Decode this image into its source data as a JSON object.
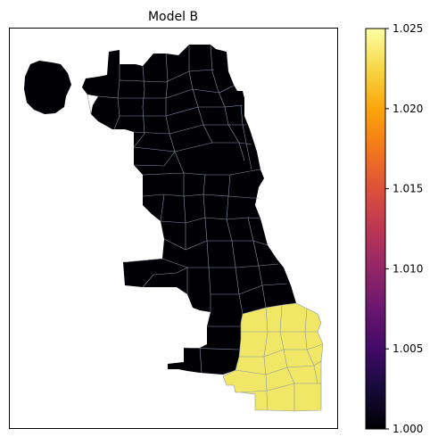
{
  "figure": {
    "title": "Model B"
  },
  "map": {
    "region_count": 77,
    "low_color": "#000004",
    "high_color": "#fcffa4",
    "boundary_color": "#8a94a8",
    "high_group_value": 1.025,
    "low_group_value": 1.0
  },
  "colorbar": {
    "colormap": "inferno",
    "vmin": 1.0,
    "vmax": 1.025,
    "ticks": [
      "1.000",
      "1.005",
      "1.010",
      "1.015",
      "1.020",
      "1.025"
    ]
  }
}
